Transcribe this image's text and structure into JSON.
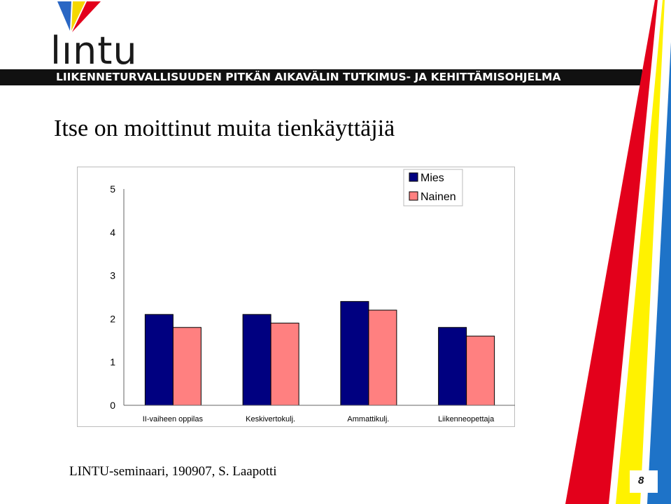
{
  "header": {
    "logo_text": "lıntu",
    "banner": "LIIKENNETURVALLISUUDEN PITKÄN AIKAVÄLIN TUTKIMUS- JA KEHITTÄMISOHJELMA"
  },
  "slide": {
    "title": "Itse on moittinut muita tienkäyttäjiä",
    "footer": "LINTU-seminaari, 190907, S. Laapotti",
    "page_number": "8"
  },
  "chart_data": {
    "type": "bar",
    "categories": [
      "II-vaiheen oppilas",
      "Keskivertokulj.",
      "Ammattikulj.",
      "Liikenneopettaja"
    ],
    "series": [
      {
        "name": "Mies",
        "values": [
          2.1,
          2.1,
          2.4,
          1.8
        ],
        "color": "#000080"
      },
      {
        "name": "Nainen",
        "values": [
          1.8,
          1.9,
          2.2,
          1.6
        ],
        "color": "#ff8080"
      }
    ],
    "yticks": [
      "0",
      "1",
      "2",
      "3",
      "4",
      "5"
    ],
    "ylim": [
      0,
      5
    ],
    "grid": false,
    "legend_position": "top-right"
  },
  "colors": {
    "logo_blue": "#2a67c4",
    "logo_yellow": "#f5d800",
    "logo_red": "#e3001b",
    "stripe_red": "#e3001b",
    "stripe_yellow": "#fff200",
    "stripe_blue": "#1e73c8"
  }
}
